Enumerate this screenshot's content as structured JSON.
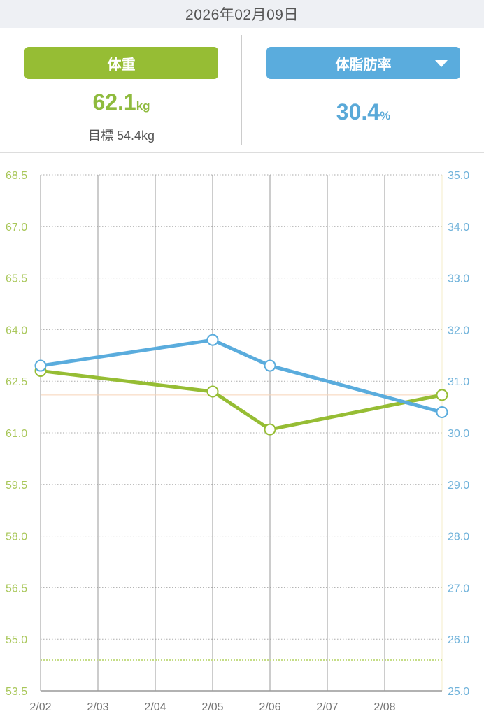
{
  "header": {
    "date": "2026年02月09日"
  },
  "weight": {
    "label": "体重",
    "value": "62.1",
    "unit": "kg",
    "goal_label": "目標",
    "goal_value": "54.4kg"
  },
  "bodyfat": {
    "label": "体脂肪率",
    "value": "30.4",
    "unit": "%",
    "dropdown_icon": "caret-down-icon"
  },
  "colors": {
    "weight": "#96bd34",
    "bodyfat": "#5aacdd",
    "goal_line": "#c5dd86",
    "current_line": "#f6d3b8"
  },
  "chart_data": {
    "type": "line",
    "x": [
      "2/02",
      "2/03",
      "2/04",
      "2/05",
      "2/06",
      "2/07",
      "2/08",
      "2/09"
    ],
    "x_tick_labels": [
      "2/02",
      "2/03",
      "2/04",
      "2/05",
      "2/06",
      "2/07",
      "2/08"
    ],
    "y_left": {
      "ylim": [
        53.5,
        68.5
      ],
      "ticks": [
        "68.5",
        "67.0",
        "65.5",
        "64.0",
        "62.5",
        "61.0",
        "59.5",
        "58.0",
        "56.5",
        "55.0",
        "53.5"
      ]
    },
    "y_right": {
      "ylim": [
        25.0,
        35.0
      ],
      "ticks": [
        "35.0",
        "34.0",
        "33.0",
        "32.0",
        "31.0",
        "30.0",
        "29.0",
        "28.0",
        "27.0",
        "26.0",
        "25.0"
      ]
    },
    "series": [
      {
        "name": "体重",
        "axis": "left",
        "points": [
          {
            "x": "2/02",
            "y": 62.8
          },
          {
            "x": "2/05",
            "y": 62.2
          },
          {
            "x": "2/06",
            "y": 61.1
          },
          {
            "x": "2/09",
            "y": 62.1
          }
        ]
      },
      {
        "name": "体脂肪率",
        "axis": "right",
        "points": [
          {
            "x": "2/02",
            "y": 31.3
          },
          {
            "x": "2/05",
            "y": 31.8
          },
          {
            "x": "2/06",
            "y": 31.3
          },
          {
            "x": "2/09",
            "y": 30.4
          }
        ]
      }
    ],
    "goal_weight": 54.4,
    "current_weight": 62.1,
    "grid": true
  }
}
